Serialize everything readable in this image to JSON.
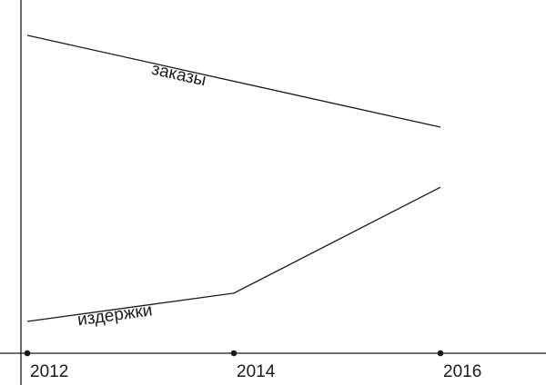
{
  "chart_data": {
    "type": "line",
    "x": [
      2012,
      2014,
      2016
    ],
    "xlabel": "",
    "ylabel": "",
    "ylim": [
      0,
      100
    ],
    "grid": false,
    "legend": "none",
    "series": [
      {
        "name": "заказы",
        "x": [
          2012,
          2016
        ],
        "values": [
          90,
          64
        ]
      },
      {
        "name": "издержки",
        "x": [
          2012,
          2014,
          2016
        ],
        "values": [
          9,
          17,
          47
        ]
      }
    ]
  }
}
